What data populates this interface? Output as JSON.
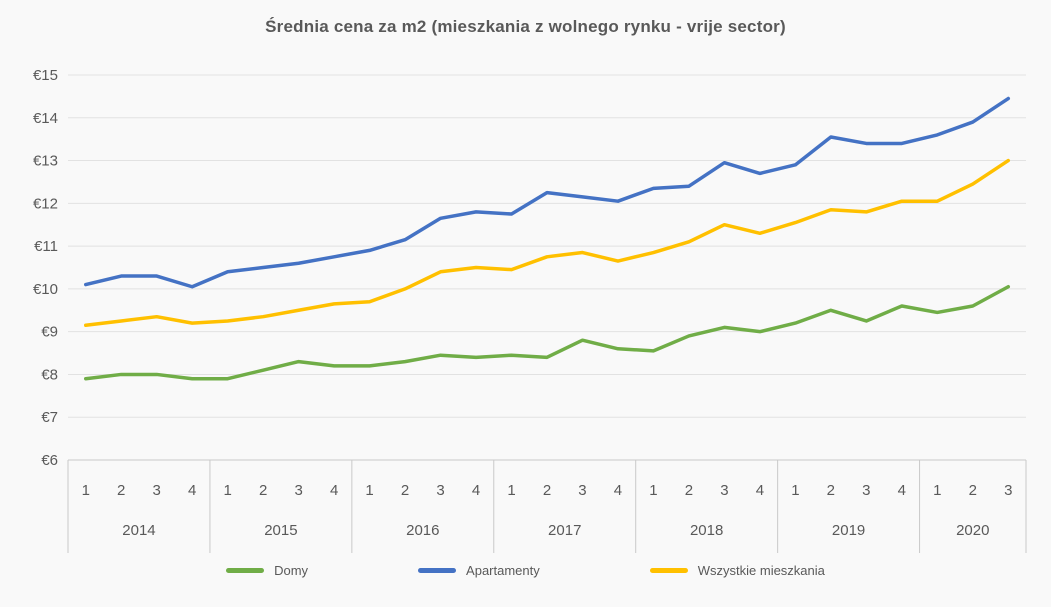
{
  "chart_data": {
    "type": "line",
    "title": "Średnia cena za m2 (mieszkania z wolnego rynku - vrije sector)",
    "xlabel": "",
    "ylabel": "",
    "ylim": [
      6,
      15
    ],
    "grid": true,
    "legend_position": "bottom",
    "y_ticks": [
      {
        "value": 6,
        "label": "€6"
      },
      {
        "value": 7,
        "label": "€7"
      },
      {
        "value": 8,
        "label": "€8"
      },
      {
        "value": 9,
        "label": "€9"
      },
      {
        "value": 10,
        "label": "€10"
      },
      {
        "value": 11,
        "label": "€11"
      },
      {
        "value": 12,
        "label": "€12"
      },
      {
        "value": 13,
        "label": "€13"
      },
      {
        "value": 14,
        "label": "€14"
      },
      {
        "value": 15,
        "label": "€15"
      }
    ],
    "groups": [
      {
        "year": "2014",
        "quarters": [
          "1",
          "2",
          "3",
          "4"
        ]
      },
      {
        "year": "2015",
        "quarters": [
          "1",
          "2",
          "3",
          "4"
        ]
      },
      {
        "year": "2016",
        "quarters": [
          "1",
          "2",
          "3",
          "4"
        ]
      },
      {
        "year": "2017",
        "quarters": [
          "1",
          "2",
          "3",
          "4"
        ]
      },
      {
        "year": "2018",
        "quarters": [
          "1",
          "2",
          "3",
          "4"
        ]
      },
      {
        "year": "2019",
        "quarters": [
          "1",
          "2",
          "3",
          "4"
        ]
      },
      {
        "year": "2020",
        "quarters": [
          "1",
          "2",
          "3"
        ]
      }
    ],
    "series": [
      {
        "id": "domy",
        "name": "Domy",
        "color": "#70AD47",
        "values": [
          7.9,
          8.0,
          8.0,
          7.9,
          7.9,
          8.1,
          8.3,
          8.2,
          8.2,
          8.3,
          8.45,
          8.4,
          8.45,
          8.4,
          8.8,
          8.6,
          8.55,
          8.9,
          9.1,
          9.0,
          9.2,
          9.5,
          9.25,
          9.6,
          9.45,
          9.6,
          10.05
        ]
      },
      {
        "id": "apartamenty",
        "name": "Apartamenty",
        "color": "#4472C4",
        "values": [
          10.1,
          10.3,
          10.3,
          10.05,
          10.4,
          10.5,
          10.6,
          10.75,
          10.9,
          11.15,
          11.65,
          11.8,
          11.75,
          12.25,
          12.15,
          12.05,
          12.35,
          12.4,
          12.95,
          12.7,
          12.9,
          13.55,
          13.4,
          13.4,
          13.6,
          13.9,
          14.45
        ]
      },
      {
        "id": "wszystkie-mieszkania",
        "name": "Wszystkie mieszkania",
        "color": "#FFC000",
        "values": [
          9.15,
          9.25,
          9.35,
          9.2,
          9.25,
          9.35,
          9.5,
          9.65,
          9.7,
          10.0,
          10.4,
          10.5,
          10.45,
          10.75,
          10.85,
          10.65,
          10.85,
          11.1,
          11.5,
          11.3,
          11.55,
          11.85,
          11.8,
          12.05,
          12.05,
          12.45,
          13.0
        ]
      }
    ]
  }
}
